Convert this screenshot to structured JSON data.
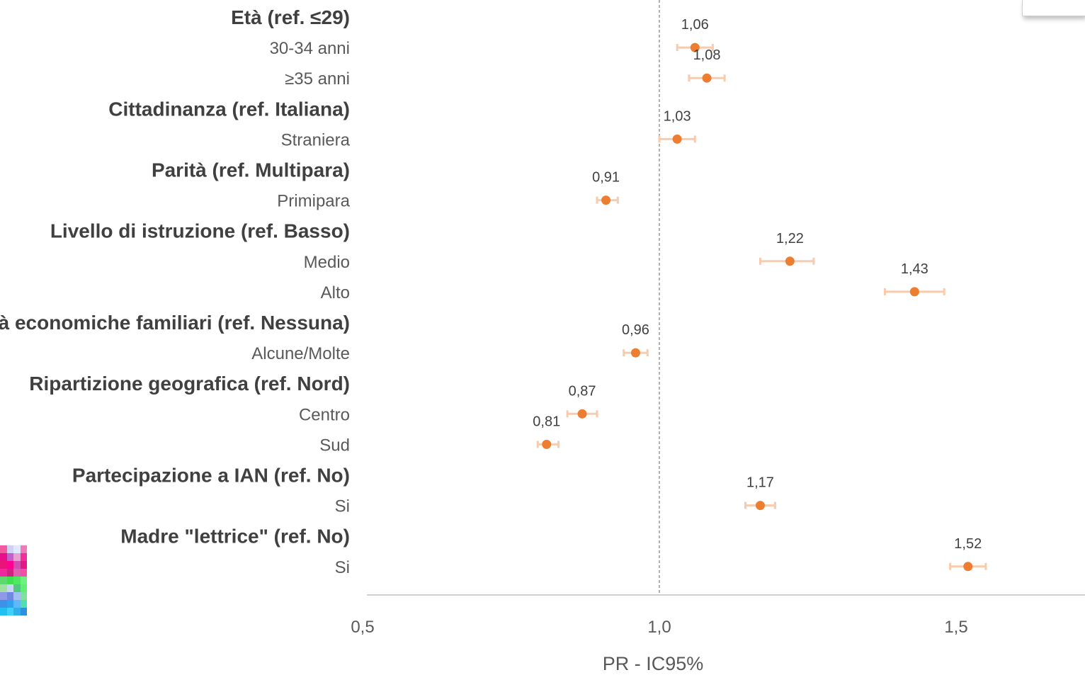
{
  "chart_data": {
    "type": "scatter",
    "xlabel": "PR - IC95%",
    "xlim": [
      0.5,
      1.72
    ],
    "xticks": [
      0.5,
      1.0,
      1.5
    ],
    "tick_labels": [
      "0,5",
      "1,0",
      "1,5"
    ],
    "reference_line": 1.0,
    "point_color": "#ED7D31",
    "errorbar_color": "#F8CBAD",
    "rows": [
      {
        "label": "Età (ref. ≤29)",
        "header": true
      },
      {
        "label": "30-34 anni",
        "header": false,
        "value": 1.06,
        "lo": 1.03,
        "hi": 1.09,
        "value_label": "1,06"
      },
      {
        "label": "≥35 anni",
        "header": false,
        "value": 1.08,
        "lo": 1.05,
        "hi": 1.11,
        "value_label": "1,08"
      },
      {
        "label": "Cittadinanza (ref. Italiana)",
        "header": true
      },
      {
        "label": "Straniera",
        "header": false,
        "value": 1.03,
        "lo": 1.0,
        "hi": 1.06,
        "value_label": "1,03"
      },
      {
        "label": "Parità (ref. Multipara)",
        "header": true
      },
      {
        "label": "Primipara",
        "header": false,
        "value": 0.91,
        "lo": 0.895,
        "hi": 0.93,
        "value_label": "0,91"
      },
      {
        "label": "Livello di istruzione (ref. Basso)",
        "header": true
      },
      {
        "label": "Medio",
        "header": false,
        "value": 1.22,
        "lo": 1.17,
        "hi": 1.26,
        "value_label": "1,22"
      },
      {
        "label": "Alto",
        "header": false,
        "value": 1.43,
        "lo": 1.38,
        "hi": 1.48,
        "value_label": "1,43"
      },
      {
        "label": "Difficoltà economiche familiari (ref. Nessuna)",
        "header": true
      },
      {
        "label": "Alcune/Molte",
        "header": false,
        "value": 0.96,
        "lo": 0.94,
        "hi": 0.98,
        "value_label": "0,96"
      },
      {
        "label": "Ripartizione geografica (ref. Nord)",
        "header": true
      },
      {
        "label": "Centro",
        "header": false,
        "value": 0.87,
        "lo": 0.845,
        "hi": 0.895,
        "value_label": "0,87"
      },
      {
        "label": "Sud",
        "header": false,
        "value": 0.81,
        "lo": 0.795,
        "hi": 0.83,
        "value_label": "0,81"
      },
      {
        "label": "Partecipazione a IAN (ref. No)",
        "header": true
      },
      {
        "label": "Si",
        "header": false,
        "value": 1.17,
        "lo": 1.145,
        "hi": 1.195,
        "value_label": "1,17"
      },
      {
        "label": "Madre \"lettrice\" (ref. No)",
        "header": true
      },
      {
        "label": "Si",
        "header": false,
        "value": 1.52,
        "lo": 1.49,
        "hi": 1.55,
        "value_label": "1,52"
      }
    ]
  },
  "decor": {
    "thumb_colors": [
      "#f05aa0",
      "#d0d0f0",
      "#e0e8ff",
      "#f07ab8",
      "#e8108a",
      "#c060c8",
      "#e8a0d0",
      "#f0309a",
      "#e81478",
      "#ff0090",
      "#d050b0",
      "#e01888",
      "#f028a0",
      "#d02080",
      "#e060b0",
      "#f050a8",
      "#60d870",
      "#40e050",
      "#50e860",
      "#70f080",
      "#a0e0a0",
      "#c8d8f0",
      "#50c880",
      "#60f070",
      "#9098e8",
      "#7088e0",
      "#a0c0f0",
      "#80e0a0",
      "#4090e8",
      "#30a0f0",
      "#60b8f8",
      "#50e0b0",
      "#20c0f0",
      "#40d0ff",
      "#30b0e8",
      "#3090e0"
    ]
  }
}
